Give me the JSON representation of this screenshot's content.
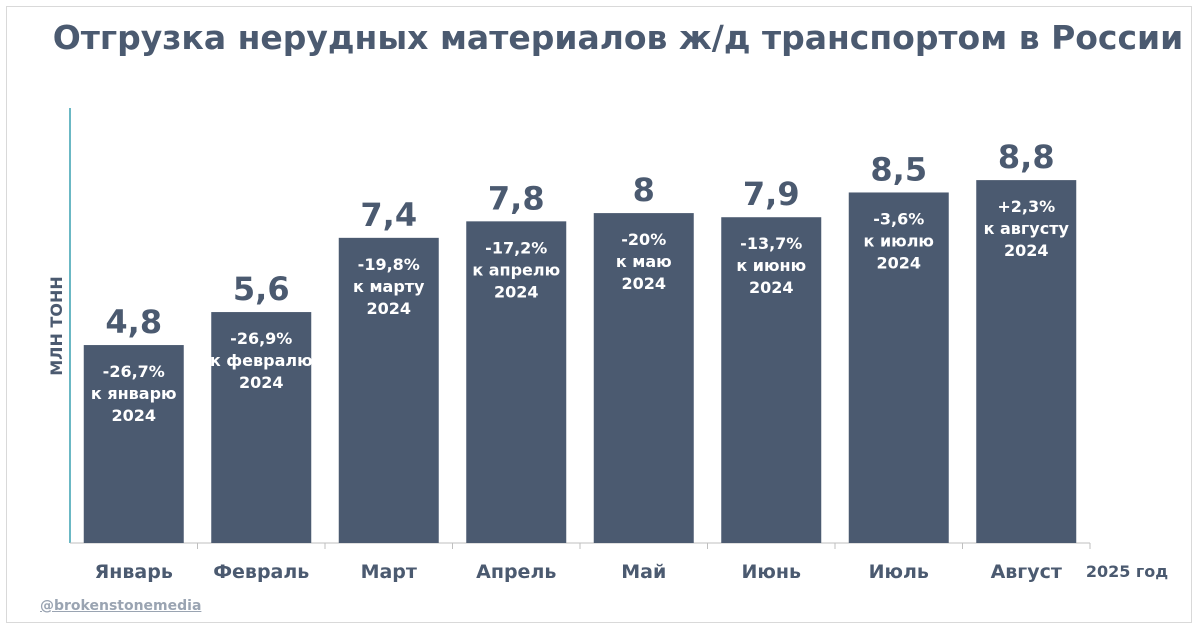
{
  "chart_data": {
    "type": "bar",
    "title": "Отгрузка нерудных материалов ж/д транспортом в России",
    "ylabel": "МЛН ТОНН",
    "xlabel": "2025 год",
    "ylim": [
      0,
      10.5
    ],
    "categories": [
      "Январь",
      "Февраль",
      "Март",
      "Апрель",
      "Май",
      "Июнь",
      "Июль",
      "Август"
    ],
    "values": [
      4.8,
      5.6,
      7.4,
      7.8,
      8,
      7.9,
      8.5,
      8.8
    ],
    "value_labels": [
      "4,8",
      "5,6",
      "7,4",
      "7,8",
      "8",
      "7,9",
      "8,5",
      "8,8"
    ],
    "annotations": [
      [
        "-26,7%",
        "к январю",
        "2024"
      ],
      [
        "-26,9%",
        "к февралю",
        "2024"
      ],
      [
        "-19,8%",
        "к марту",
        "2024"
      ],
      [
        "-17,2%",
        "к апрелю",
        "2024"
      ],
      [
        "-20%",
        "к маю",
        "2024"
      ],
      [
        "-13,7%",
        "к июню",
        "2024"
      ],
      [
        "-3,6%",
        "к июлю",
        "2024"
      ],
      [
        "+2,3%",
        "к августу",
        "2024"
      ]
    ],
    "bar_color": "#4b5a70",
    "axis_color": "#3aa0b0",
    "text_color": "#4b5a70",
    "grid": false,
    "legend": "none"
  },
  "credit": "@brokenstonemedia"
}
